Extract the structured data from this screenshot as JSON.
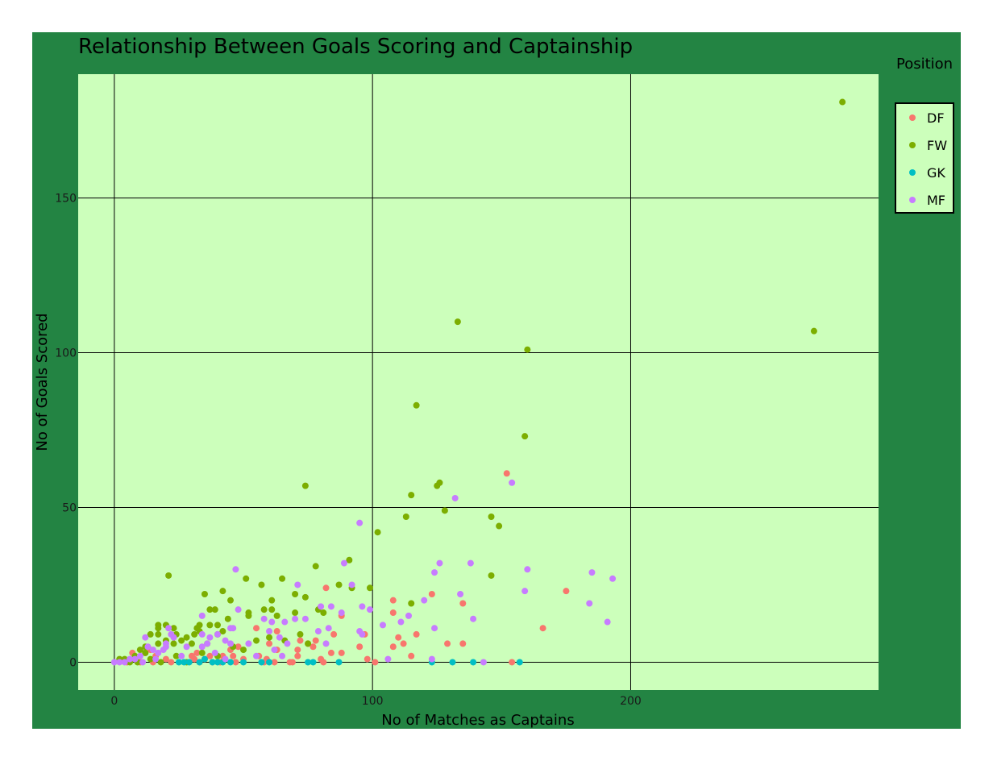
{
  "chart_data": {
    "type": "scatter",
    "title": "Relationship Between Goals Scoring and Captainship",
    "xlabel": "No of Matches as Captains",
    "ylabel": "No of Goals Scored",
    "xlim": [
      -14,
      296
    ],
    "ylim": [
      -9,
      190
    ],
    "x_ticks": [
      0,
      100,
      200
    ],
    "y_ticks": [
      0,
      50,
      100,
      150
    ],
    "grid": true,
    "legend_title": "Position",
    "legend_position": "right",
    "colors": {
      "paper": "#238443",
      "plot": "#ccffbb",
      "grid": "#000000",
      "DF": "#f8766d",
      "FW": "#7cae00",
      "GK": "#00bfc4",
      "MF": "#c77cff"
    },
    "series": [
      {
        "name": "DF",
        "points": [
          [
            152,
            61
          ],
          [
            175,
            23
          ],
          [
            166,
            11
          ],
          [
            135,
            19
          ],
          [
            123,
            22
          ],
          [
            135,
            6
          ],
          [
            129,
            6
          ],
          [
            154,
            0
          ],
          [
            108,
            20
          ],
          [
            108,
            16
          ],
          [
            117,
            9
          ],
          [
            110,
            8
          ],
          [
            112,
            6
          ],
          [
            108,
            5
          ],
          [
            115,
            2
          ],
          [
            101,
            0
          ],
          [
            82,
            24
          ],
          [
            88,
            15
          ],
          [
            85,
            9
          ],
          [
            84,
            3
          ],
          [
            88,
            3
          ],
          [
            95,
            5
          ],
          [
            98,
            1
          ],
          [
            97,
            9
          ],
          [
            75,
            6
          ],
          [
            77,
            5
          ],
          [
            78,
            7
          ],
          [
            80,
            1
          ],
          [
            81,
            0
          ],
          [
            71,
            4
          ],
          [
            72,
            7
          ],
          [
            71,
            2
          ],
          [
            68,
            0
          ],
          [
            69,
            0
          ],
          [
            55,
            11
          ],
          [
            60,
            6
          ],
          [
            63,
            4
          ],
          [
            63,
            10
          ],
          [
            56,
            2
          ],
          [
            58,
            0
          ],
          [
            62,
            0
          ],
          [
            59,
            1
          ],
          [
            45,
            4
          ],
          [
            46,
            2
          ],
          [
            48,
            5
          ],
          [
            47,
            0
          ],
          [
            50,
            1
          ],
          [
            42,
            2
          ],
          [
            41,
            0
          ],
          [
            30,
            2
          ],
          [
            32,
            3
          ],
          [
            33,
            0
          ],
          [
            35,
            1
          ],
          [
            37,
            2
          ],
          [
            38,
            0
          ],
          [
            31,
            1
          ],
          [
            14,
            4
          ],
          [
            12,
            3
          ],
          [
            15,
            0
          ],
          [
            16,
            2
          ],
          [
            7,
            3
          ],
          [
            8,
            1
          ],
          [
            10,
            0
          ],
          [
            5,
            0
          ],
          [
            20,
            1
          ],
          [
            22,
            0
          ]
        ]
      },
      {
        "name": "FW",
        "points": [
          [
            282,
            181
          ],
          [
            271,
            107
          ],
          [
            133,
            110
          ],
          [
            160,
            101
          ],
          [
            117,
            83
          ],
          [
            159,
            73
          ],
          [
            126,
            58
          ],
          [
            125,
            57
          ],
          [
            115,
            54
          ],
          [
            74,
            57
          ],
          [
            128,
            49
          ],
          [
            146,
            47
          ],
          [
            149,
            44
          ],
          [
            113,
            47
          ],
          [
            102,
            42
          ],
          [
            91,
            33
          ],
          [
            78,
            31
          ],
          [
            65,
            27
          ],
          [
            51,
            27
          ],
          [
            21,
            28
          ],
          [
            57,
            25
          ],
          [
            87,
            25
          ],
          [
            92,
            24
          ],
          [
            99,
            24
          ],
          [
            70,
            22
          ],
          [
            74,
            21
          ],
          [
            35,
            22
          ],
          [
            42,
            23
          ],
          [
            146,
            28
          ],
          [
            115,
            19
          ],
          [
            45,
            20
          ],
          [
            61,
            20
          ],
          [
            37,
            17
          ],
          [
            39,
            17
          ],
          [
            52,
            16
          ],
          [
            61,
            17
          ],
          [
            58,
            17
          ],
          [
            79,
            17
          ],
          [
            81,
            16
          ],
          [
            70,
            16
          ],
          [
            33,
            12
          ],
          [
            37,
            12
          ],
          [
            40,
            12
          ],
          [
            17,
            12
          ],
          [
            20,
            12
          ],
          [
            23,
            11
          ],
          [
            17,
            11
          ],
          [
            32,
            11
          ],
          [
            14,
            9
          ],
          [
            17,
            9
          ],
          [
            24,
            9
          ],
          [
            31,
            9
          ],
          [
            33,
            10
          ],
          [
            44,
            14
          ],
          [
            52,
            15
          ],
          [
            63,
            15
          ],
          [
            8,
            2
          ],
          [
            10,
            4
          ],
          [
            12,
            5
          ],
          [
            12,
            3
          ],
          [
            17,
            6
          ],
          [
            20,
            7
          ],
          [
            23,
            6
          ],
          [
            26,
            7
          ],
          [
            28,
            8
          ],
          [
            30,
            6
          ],
          [
            36,
            6
          ],
          [
            40,
            9
          ],
          [
            42,
            10
          ],
          [
            46,
            5
          ],
          [
            50,
            4
          ],
          [
            55,
            7
          ],
          [
            60,
            8
          ],
          [
            66,
            7
          ],
          [
            72,
            9
          ],
          [
            75,
            6
          ],
          [
            4,
            1
          ],
          [
            6,
            0
          ],
          [
            2,
            1
          ],
          [
            9,
            0
          ],
          [
            14,
            1
          ],
          [
            18,
            0
          ],
          [
            24,
            2
          ],
          [
            28,
            0
          ],
          [
            34,
            3
          ],
          [
            40,
            2
          ]
        ]
      },
      {
        "name": "GK",
        "points": [
          [
            157,
            0
          ],
          [
            139,
            0
          ],
          [
            131,
            0
          ],
          [
            123,
            0
          ],
          [
            87,
            0
          ],
          [
            77,
            0
          ],
          [
            75,
            0
          ],
          [
            60,
            0
          ],
          [
            57,
            0
          ],
          [
            50,
            0
          ],
          [
            45,
            0
          ],
          [
            42,
            0
          ],
          [
            40,
            0
          ],
          [
            38,
            0
          ],
          [
            33,
            0
          ],
          [
            29,
            0
          ],
          [
            27,
            0
          ],
          [
            25,
            0
          ],
          [
            35,
            1
          ]
        ]
      },
      {
        "name": "MF",
        "points": [
          [
            193,
            27
          ],
          [
            185,
            29
          ],
          [
            184,
            19
          ],
          [
            191,
            13
          ],
          [
            160,
            30
          ],
          [
            159,
            23
          ],
          [
            154,
            58
          ],
          [
            132,
            53
          ],
          [
            138,
            32
          ],
          [
            126,
            32
          ],
          [
            124,
            29
          ],
          [
            134,
            22
          ],
          [
            139,
            14
          ],
          [
            120,
            20
          ],
          [
            114,
            15
          ],
          [
            111,
            13
          ],
          [
            104,
            12
          ],
          [
            99,
            17
          ],
          [
            96,
            18
          ],
          [
            95,
            10
          ],
          [
            96,
            9
          ],
          [
            95,
            45
          ],
          [
            92,
            25
          ],
          [
            89,
            32
          ],
          [
            88,
            16
          ],
          [
            84,
            18
          ],
          [
            80,
            18
          ],
          [
            83,
            11
          ],
          [
            79,
            10
          ],
          [
            82,
            6
          ],
          [
            74,
            14
          ],
          [
            71,
            25
          ],
          [
            70,
            14
          ],
          [
            66,
            13
          ],
          [
            61,
            13
          ],
          [
            58,
            14
          ],
          [
            60,
            10
          ],
          [
            64,
            8
          ],
          [
            62,
            4
          ],
          [
            47,
            30
          ],
          [
            48,
            17
          ],
          [
            45,
            11
          ],
          [
            46,
            11
          ],
          [
            40,
            9
          ],
          [
            43,
            7
          ],
          [
            45,
            6
          ],
          [
            34,
            15
          ],
          [
            37,
            8
          ],
          [
            36,
            6
          ],
          [
            34,
            5
          ],
          [
            34,
            9
          ],
          [
            21,
            11
          ],
          [
            23,
            8
          ],
          [
            22,
            9
          ],
          [
            20,
            6
          ],
          [
            20,
            5
          ],
          [
            19,
            4
          ],
          [
            15,
            4
          ],
          [
            17,
            3
          ],
          [
            12,
            8
          ],
          [
            13,
            5
          ],
          [
            10,
            2
          ],
          [
            8,
            1
          ],
          [
            6,
            1
          ],
          [
            4,
            0
          ],
          [
            2,
            0
          ],
          [
            0,
            0
          ],
          [
            11,
            0
          ],
          [
            16,
            1
          ],
          [
            26,
            2
          ],
          [
            28,
            5
          ],
          [
            39,
            3
          ],
          [
            43,
            1
          ],
          [
            52,
            6
          ],
          [
            55,
            2
          ],
          [
            65,
            2
          ],
          [
            67,
            6
          ],
          [
            124,
            11
          ],
          [
            123,
            1
          ],
          [
            106,
            1
          ],
          [
            143,
            0
          ]
        ]
      }
    ]
  }
}
